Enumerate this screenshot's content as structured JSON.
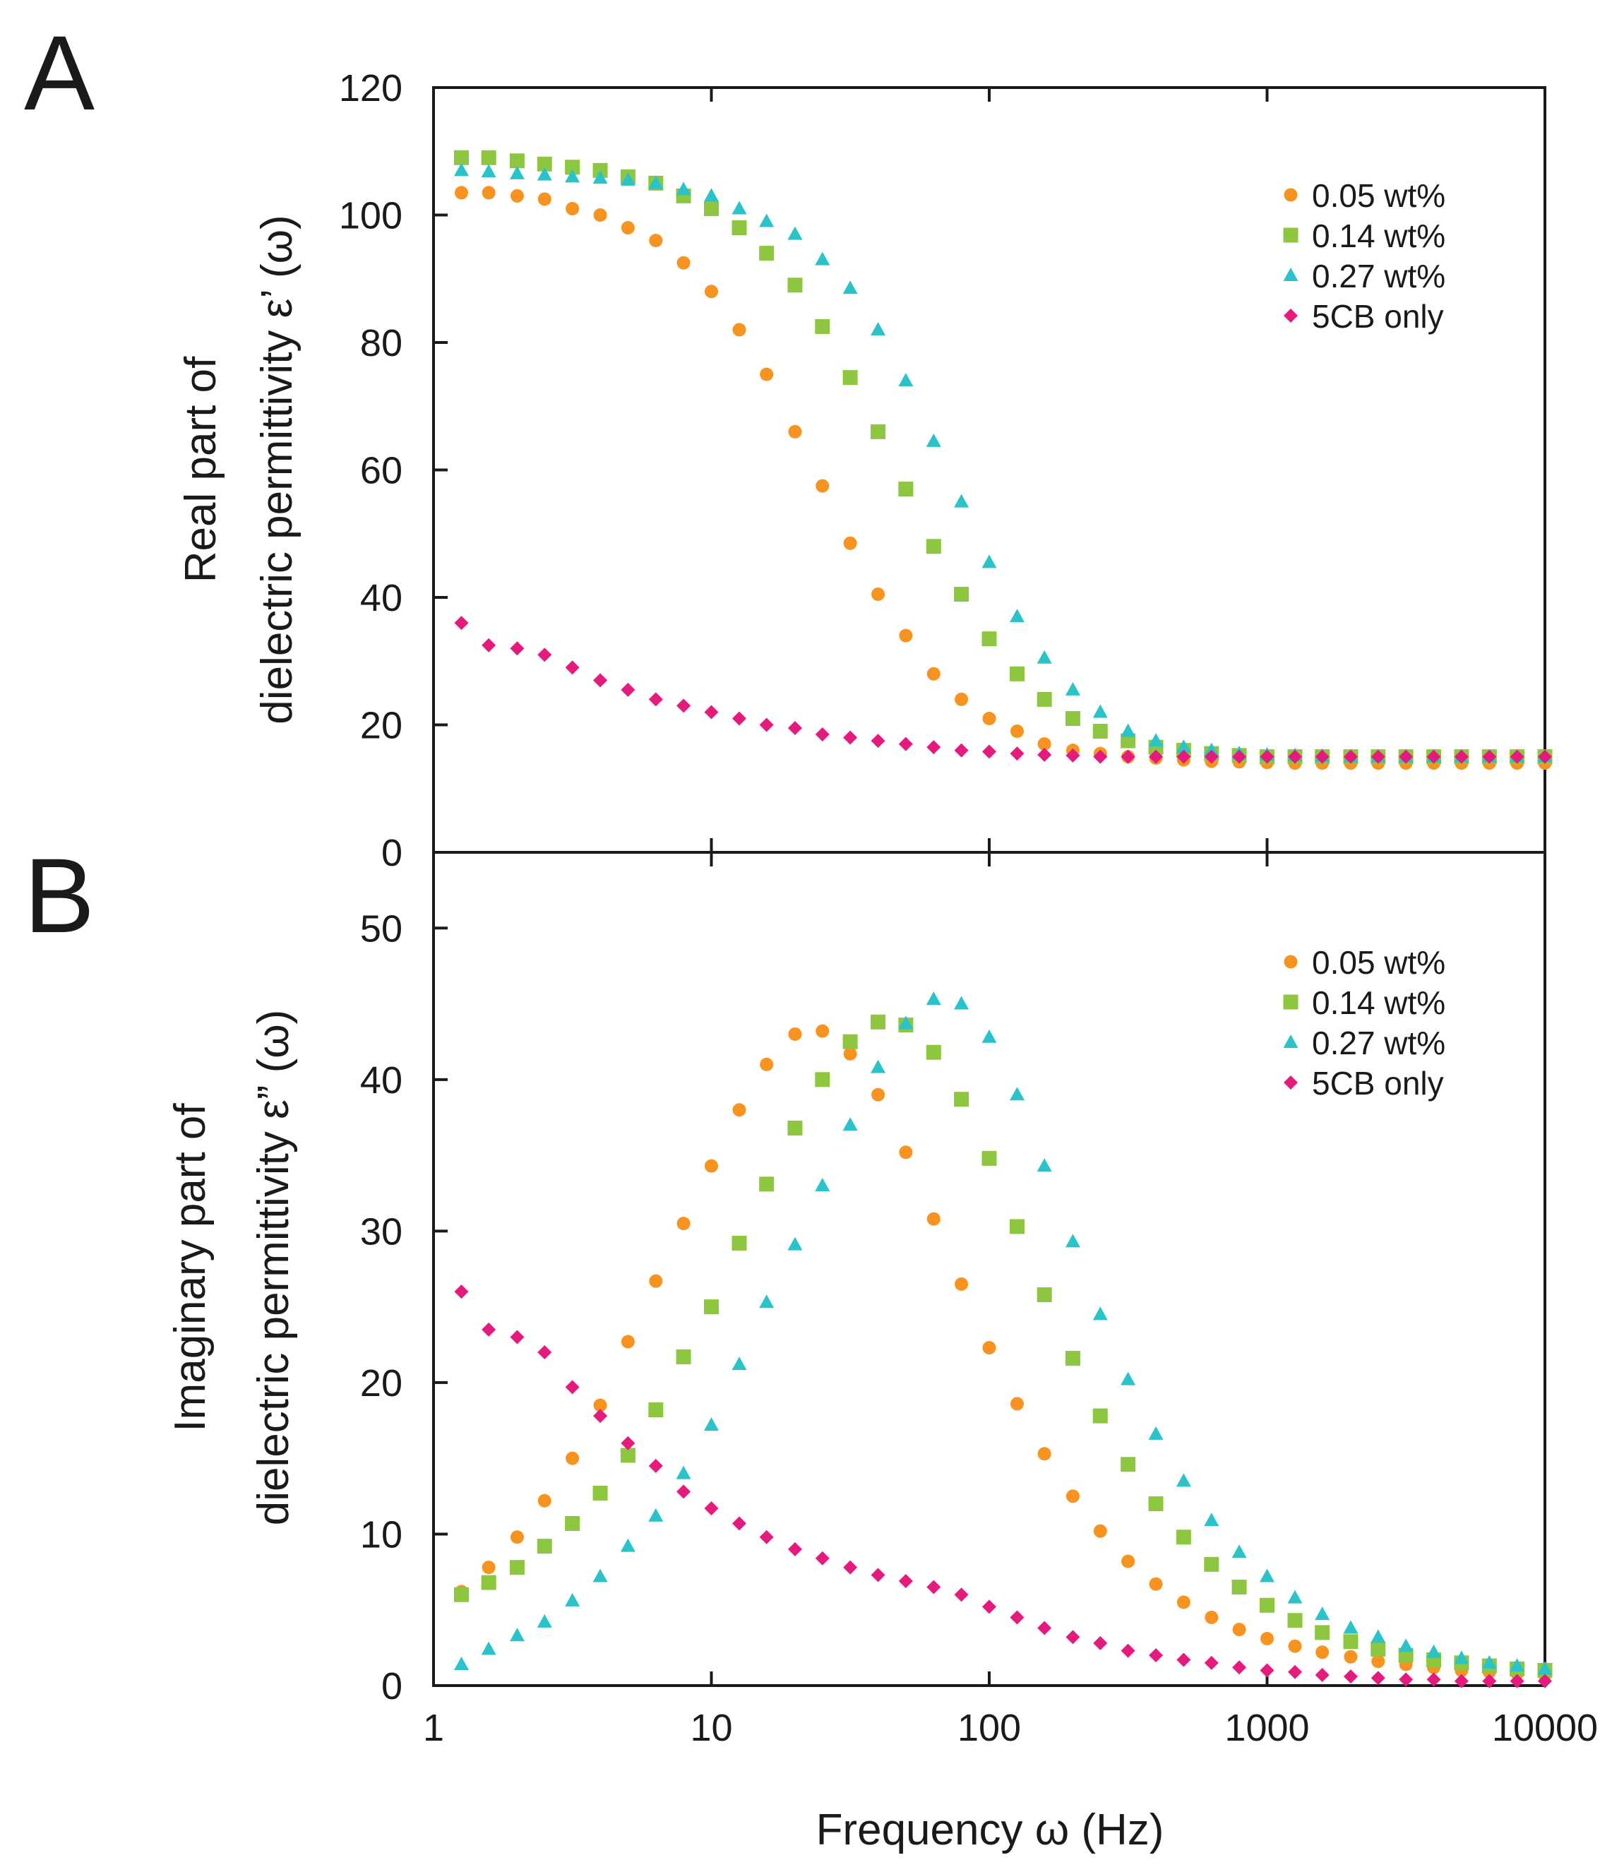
{
  "chart_data": [
    {
      "type": "scatter",
      "panel": "A",
      "ylabel_line1": "Real part of",
      "ylabel_line2": "dielectric permittivity ε’ (ω)",
      "xlabel": "",
      "xscale": "log",
      "xlim": [
        1,
        10000
      ],
      "ylim": [
        0,
        120
      ],
      "yticks": [
        0,
        20,
        40,
        60,
        80,
        100,
        120
      ],
      "x": [
        1.26,
        1.58,
        2,
        2.51,
        3.16,
        3.98,
        5.01,
        6.31,
        7.94,
        10,
        12.6,
        15.8,
        20,
        25.1,
        31.6,
        39.8,
        50.1,
        63.1,
        79.4,
        100,
        126,
        158,
        200,
        251,
        316,
        398,
        501,
        631,
        794,
        1000,
        1260,
        1580,
        2000,
        2510,
        3160,
        3980,
        5010,
        6310,
        7940,
        10000
      ],
      "legend_position": "top-right",
      "series": [
        {
          "name": "0.05 wt%",
          "marker": "circle",
          "color": "#f7931e",
          "values": [
            103.5,
            103.5,
            103,
            102.5,
            101,
            100,
            98,
            96,
            92.5,
            88,
            82,
            75,
            66,
            57.5,
            48.5,
            40.5,
            34,
            28,
            24,
            21,
            19,
            17,
            16,
            15.5,
            15,
            14.8,
            14.5,
            14.3,
            14.2,
            14.1,
            14,
            14,
            14,
            14,
            14,
            14,
            14,
            14,
            14,
            14
          ]
        },
        {
          "name": "0.14 wt%",
          "marker": "square",
          "color": "#8dc63f",
          "values": [
            109,
            109,
            108.5,
            108,
            107.5,
            107,
            106,
            105,
            103,
            101,
            98,
            94,
            89,
            82.5,
            74.5,
            66,
            57,
            48,
            40.5,
            33.5,
            28,
            24,
            21,
            19,
            17.5,
            16.5,
            16,
            15.5,
            15.2,
            15,
            15,
            15,
            15,
            15,
            15,
            15,
            15,
            15,
            15,
            15
          ]
        },
        {
          "name": "0.27 wt%",
          "marker": "triangle",
          "color": "#29c3c9",
          "values": [
            107,
            106.8,
            106.5,
            106.3,
            106,
            105.8,
            105.5,
            105,
            104,
            103,
            101,
            99,
            97,
            93,
            88.5,
            82,
            74,
            64.5,
            55,
            45.5,
            37,
            30.5,
            25.5,
            22,
            19,
            17.5,
            16.5,
            16,
            15.5,
            15.3,
            15.2,
            15.1,
            15,
            15,
            15,
            15,
            15,
            15,
            15,
            15
          ]
        },
        {
          "name": "5CB only",
          "marker": "diamond",
          "color": "#e6197d",
          "values": [
            36,
            32.5,
            32,
            31,
            29,
            27,
            25.5,
            24,
            23,
            22,
            21,
            20,
            19.5,
            18.5,
            18,
            17.5,
            17,
            16.5,
            16,
            15.8,
            15.5,
            15.3,
            15.2,
            15,
            15,
            15,
            15,
            15,
            15,
            15,
            15,
            15,
            15,
            15,
            15,
            15,
            15,
            15,
            15,
            15
          ]
        }
      ]
    },
    {
      "type": "scatter",
      "panel": "B",
      "ylabel_line1": "Imaginary part of",
      "ylabel_line2": "dielectric permittivity ε” (ω)",
      "xlabel": "Frequency ω (Hz)",
      "xscale": "log",
      "xlim": [
        1,
        10000
      ],
      "ylim": [
        0,
        55
      ],
      "yticks": [
        0,
        10,
        20,
        30,
        40,
        50
      ],
      "xticks": [
        "1",
        "10",
        "100",
        "1000",
        "10000"
      ],
      "x": [
        1.26,
        1.58,
        2,
        2.51,
        3.16,
        3.98,
        5.01,
        6.31,
        7.94,
        10,
        12.6,
        15.8,
        20,
        25.1,
        31.6,
        39.8,
        50.1,
        63.1,
        79.4,
        100,
        126,
        158,
        200,
        251,
        316,
        398,
        501,
        631,
        794,
        1000,
        1260,
        1580,
        2000,
        2510,
        3160,
        3980,
        5010,
        6310,
        7940,
        10000
      ],
      "legend_position": "top-right",
      "series": [
        {
          "name": "0.05 wt%",
          "marker": "circle",
          "color": "#f7931e",
          "values": [
            6.2,
            7.8,
            9.8,
            12.2,
            15,
            18.5,
            22.7,
            26.7,
            30.5,
            34.3,
            38,
            41,
            43,
            43.2,
            41.7,
            39,
            35.2,
            30.8,
            26.5,
            22.3,
            18.6,
            15.3,
            12.5,
            10.2,
            8.2,
            6.7,
            5.5,
            4.5,
            3.7,
            3.1,
            2.6,
            2.2,
            1.9,
            1.6,
            1.4,
            1.2,
            1,
            0.9,
            0.8,
            0.7
          ]
        },
        {
          "name": "0.14 wt%",
          "marker": "square",
          "color": "#8dc63f",
          "values": [
            6,
            6.8,
            7.8,
            9.2,
            10.7,
            12.7,
            15.2,
            18.2,
            21.7,
            25,
            29.2,
            33.1,
            36.8,
            40,
            42.5,
            43.8,
            43.6,
            41.8,
            38.7,
            34.8,
            30.3,
            25.8,
            21.6,
            17.8,
            14.6,
            12,
            9.8,
            8,
            6.5,
            5.3,
            4.3,
            3.5,
            2.9,
            2.4,
            2,
            1.7,
            1.5,
            1.3,
            1.1,
            1
          ]
        },
        {
          "name": "0.27 wt%",
          "marker": "triangle",
          "color": "#29c3c9",
          "values": [
            1.4,
            2.4,
            3.3,
            4.2,
            5.6,
            7.2,
            9.2,
            11.2,
            14,
            17.2,
            21.2,
            25.3,
            29.1,
            33,
            37,
            40.8,
            43.7,
            45.3,
            45,
            42.8,
            39,
            34.3,
            29.3,
            24.5,
            20.2,
            16.6,
            13.5,
            10.9,
            8.8,
            7.2,
            5.8,
            4.7,
            3.8,
            3.2,
            2.6,
            2.2,
            1.8,
            1.5,
            1.3,
            1.1
          ]
        },
        {
          "name": "5CB only",
          "marker": "diamond",
          "color": "#e6197d",
          "values": [
            26,
            23.5,
            23,
            22,
            19.7,
            17.8,
            16,
            14.5,
            12.8,
            11.7,
            10.7,
            9.8,
            9,
            8.4,
            7.8,
            7.3,
            6.9,
            6.5,
            6,
            5.2,
            4.5,
            3.8,
            3.2,
            2.8,
            2.3,
            2,
            1.7,
            1.5,
            1.2,
            1,
            0.9,
            0.7,
            0.6,
            0.5,
            0.4,
            0.4,
            0.3,
            0.3,
            0.3,
            0.3
          ]
        }
      ]
    }
  ]
}
